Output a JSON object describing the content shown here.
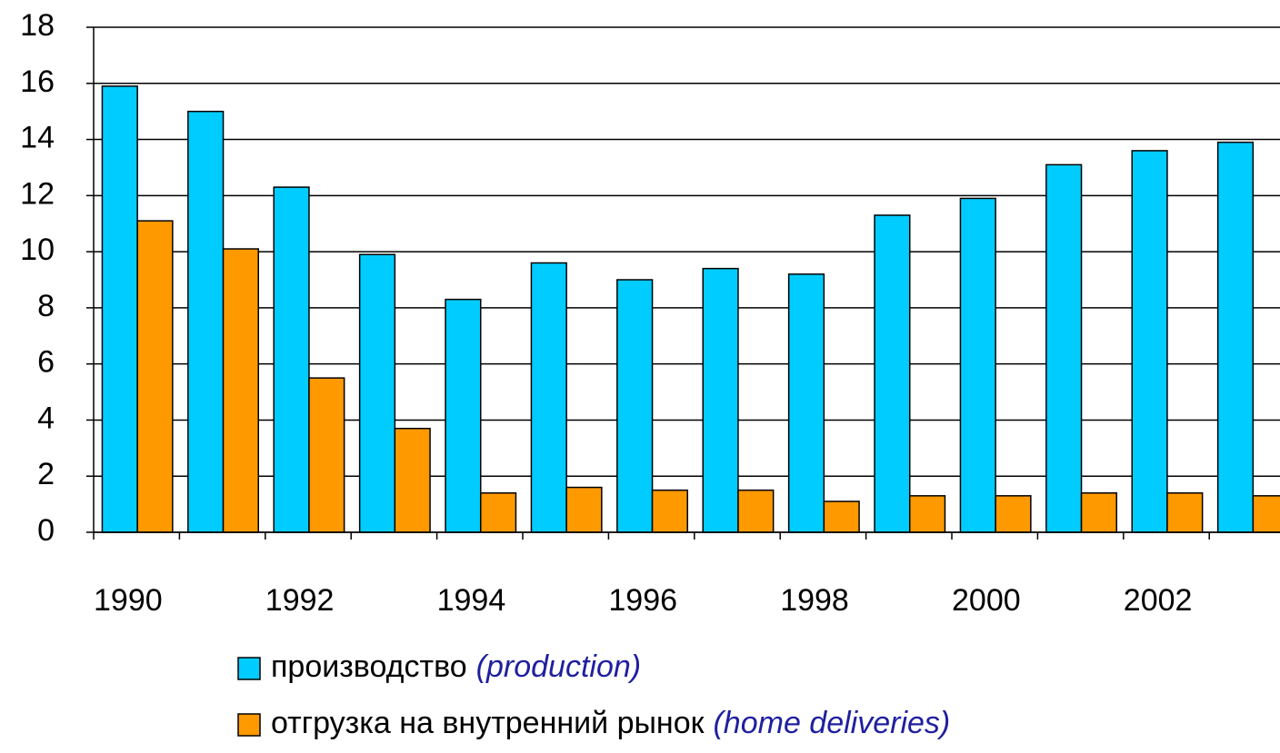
{
  "chart_data": {
    "type": "bar",
    "categories": [
      "1990",
      null,
      "1992",
      null,
      "1994",
      null,
      "1996",
      null,
      "1998",
      null,
      "2000",
      null,
      "2002",
      null
    ],
    "series": [
      {
        "name": "производство",
        "name_en": "(production)",
        "color": "#00ccff",
        "values": [
          15.9,
          15.0,
          12.3,
          9.9,
          8.3,
          9.6,
          9.0,
          9.4,
          9.2,
          11.3,
          11.9,
          13.1,
          13.6,
          13.9
        ]
      },
      {
        "name": "отгрузка на внутренний рынок",
        "name_en": "(home deliveries)",
        "color": "#ff9900",
        "values": [
          11.1,
          10.1,
          5.5,
          3.7,
          1.4,
          1.6,
          1.5,
          1.5,
          1.1,
          1.3,
          1.3,
          1.4,
          1.4,
          1.3
        ]
      }
    ],
    "ylim": [
      0,
      18
    ],
    "yticks": [
      0,
      2,
      4,
      6,
      8,
      10,
      12,
      14,
      16,
      18
    ],
    "grid": true
  }
}
